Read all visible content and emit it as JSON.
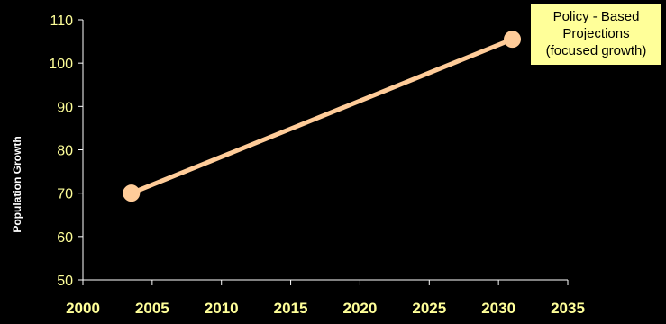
{
  "chart_data": {
    "type": "line",
    "title": "",
    "xlabel": "",
    "ylabel": "Population Growth",
    "xlim": [
      2000,
      2035
    ],
    "ylim": [
      50,
      110
    ],
    "xticks": [
      "2000",
      "2005",
      "2010",
      "2015",
      "2020",
      "2025",
      "2030",
      "2035"
    ],
    "yticks": [
      "50",
      "60",
      "70",
      "80",
      "90",
      "100",
      "110"
    ],
    "grid": false,
    "legend": "none",
    "series": [
      {
        "x": [
          2003.5,
          2031
        ],
        "y": [
          70,
          105.5
        ],
        "color": "#FFCC99"
      }
    ],
    "annotation": {
      "lines": [
        "Policy - Based",
        "Projections",
        "(focused growth)"
      ],
      "background": "#FFFF99"
    },
    "colors": {
      "background": "#000000",
      "axis": "#FFFFFF",
      "tick_label": "#FFFF99",
      "series": "#FFCC99"
    }
  }
}
